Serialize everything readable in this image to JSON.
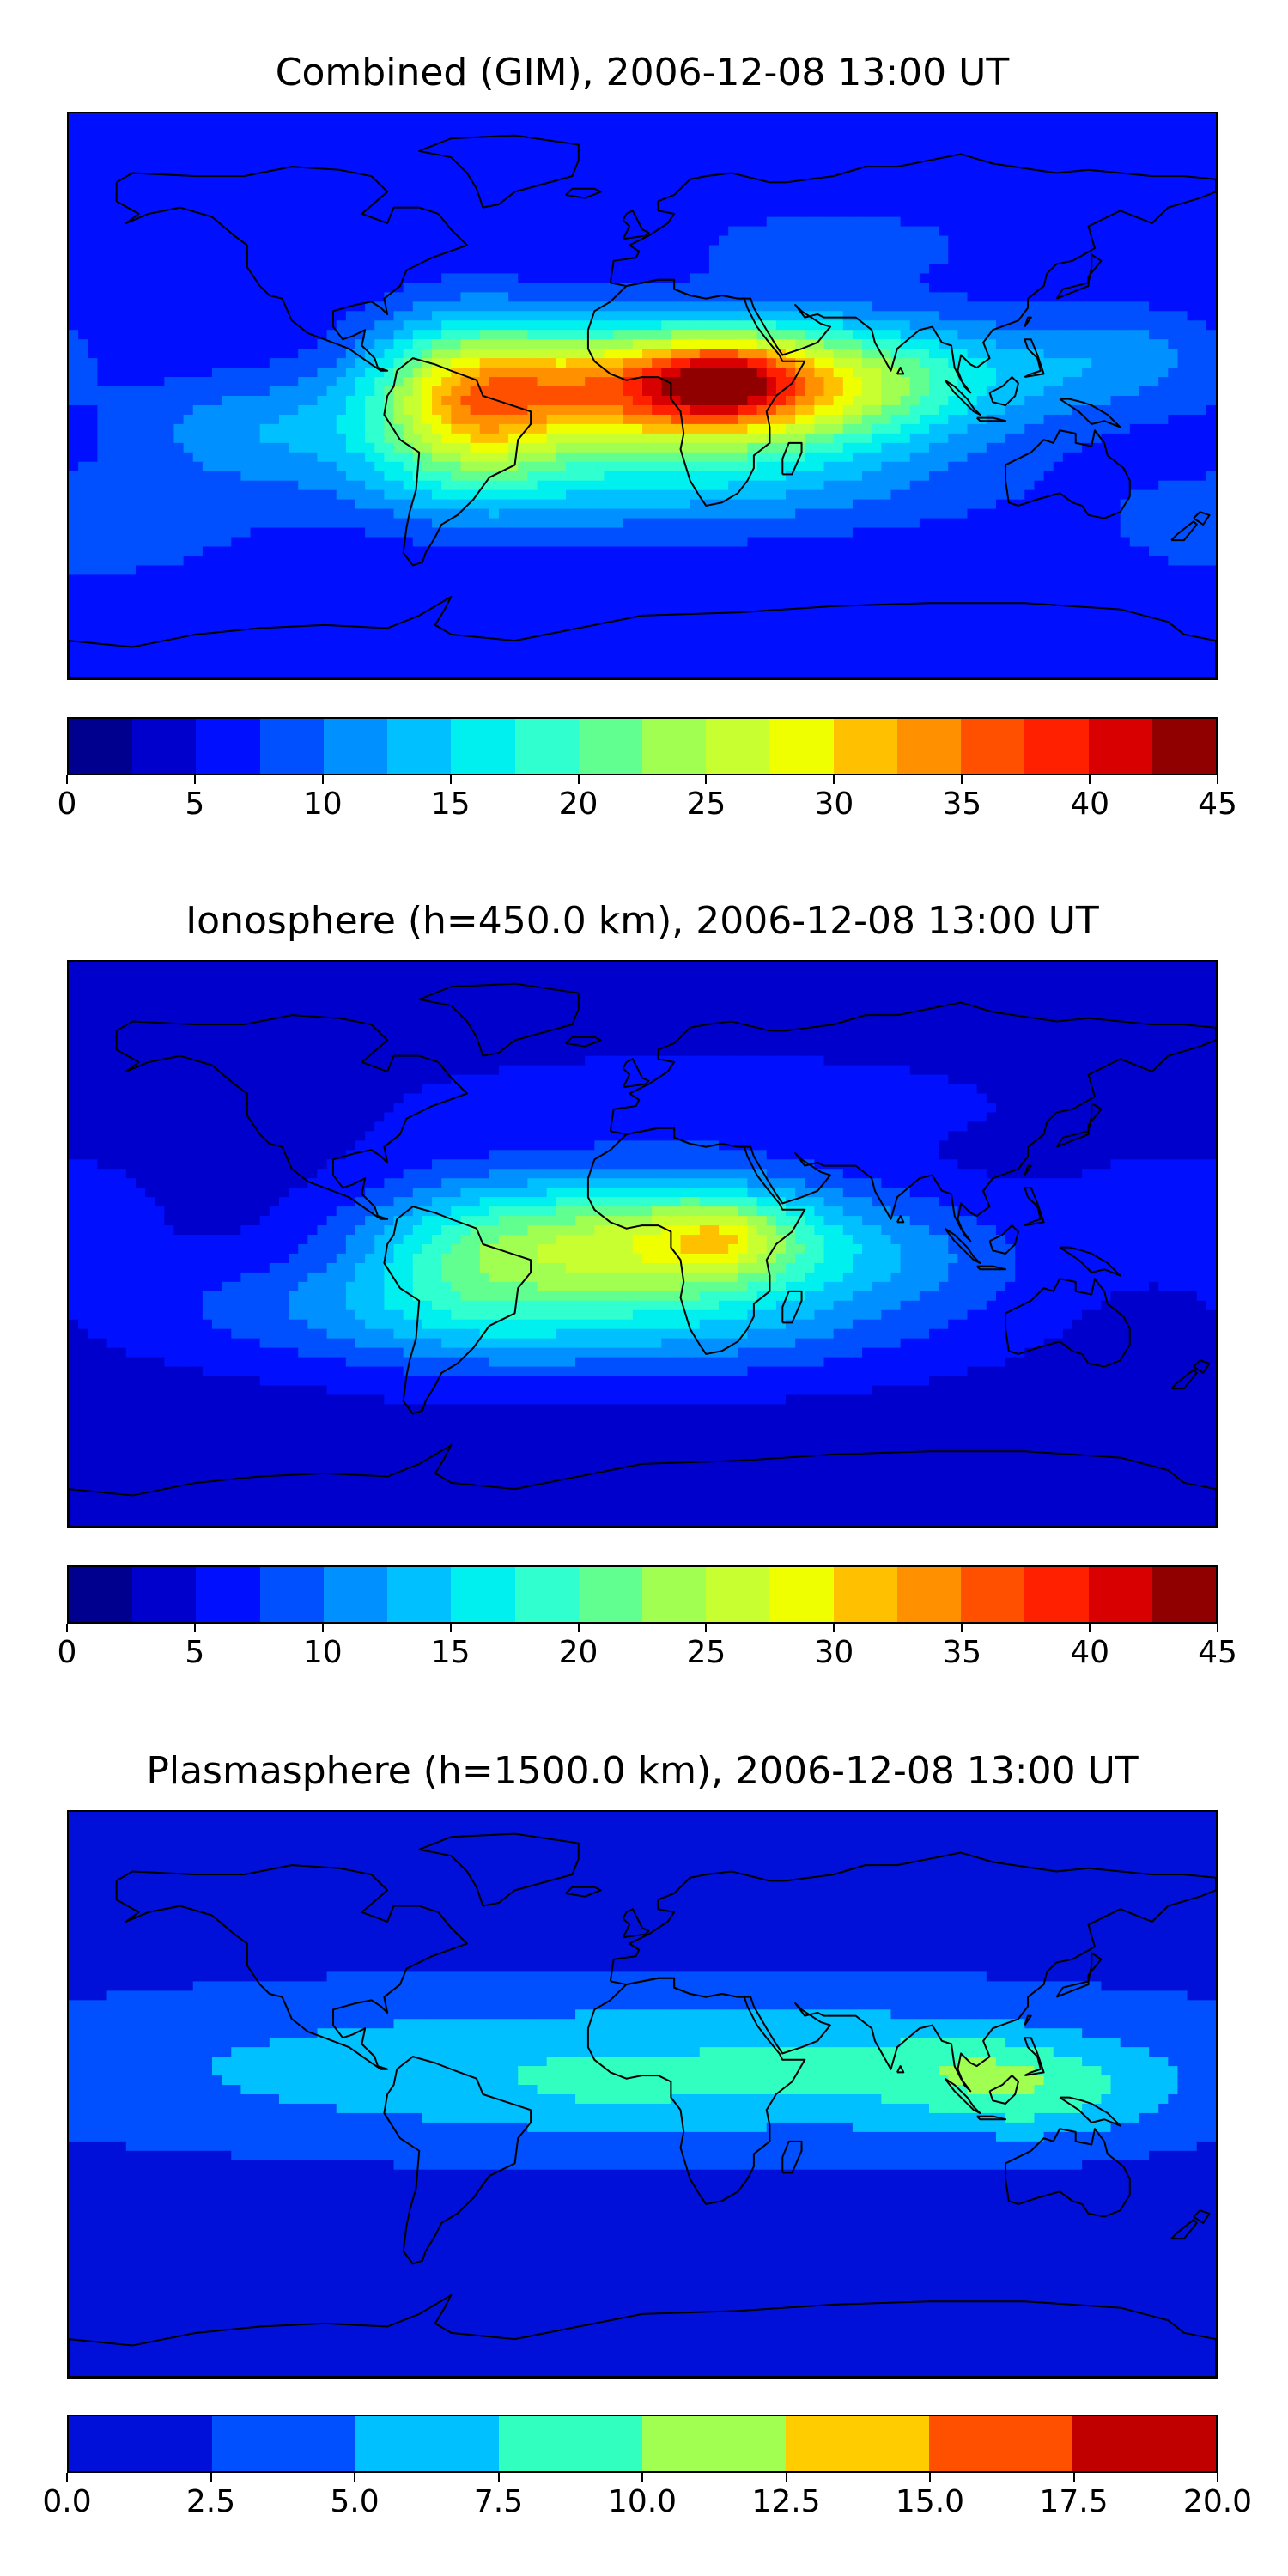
{
  "panels": [
    {
      "title": "Combined (GIM), 2006-12-08 13:00 UT",
      "colorbar": {
        "colors": [
          "#00008f",
          "#0000cd",
          "#0010ff",
          "#0050ff",
          "#0090ff",
          "#00c0ff",
          "#00f0f0",
          "#30ffd0",
          "#60ff90",
          "#a0ff50",
          "#c8ff30",
          "#f0ff00",
          "#ffc000",
          "#ff9000",
          "#ff5000",
          "#ff2000",
          "#d80000",
          "#900000"
        ],
        "tick_labels": [
          "0",
          "5",
          "10",
          "15",
          "20",
          "25",
          "30",
          "35",
          "40",
          "45"
        ],
        "range": [
          0,
          45
        ]
      },
      "field": {
        "background": 5.5,
        "blobs": [
          {
            "lon": 10,
            "lat": 2,
            "sx": 42,
            "sy": 14,
            "a": 30
          },
          {
            "lon": 25,
            "lat": 5,
            "sx": 14,
            "sy": 8,
            "a": 9
          },
          {
            "lon": -55,
            "lat": -2,
            "sx": 22,
            "sy": 18,
            "a": 20
          },
          {
            "lon": 70,
            "lat": 5,
            "sx": 40,
            "sy": 14,
            "a": 11
          },
          {
            "lon": 0,
            "lat": -28,
            "sx": 70,
            "sy": 12,
            "a": 7
          },
          {
            "lon": -120,
            "lat": -10,
            "sx": 30,
            "sy": 12,
            "a": 6
          },
          {
            "lon": 150,
            "lat": 12,
            "sx": 25,
            "sy": 12,
            "a": 5
          },
          {
            "lon": 60,
            "lat": 48,
            "sx": 30,
            "sy": 8,
            "a": 4
          },
          {
            "lon": -170,
            "lat": -42,
            "sx": 30,
            "sy": 12,
            "a": 4
          }
        ]
      }
    },
    {
      "title": "Ionosphere  (h=450.0 km), 2006-12-08 13:00 UT",
      "colorbar": {
        "colors": [
          "#00008f",
          "#0000cd",
          "#0010ff",
          "#0050ff",
          "#0090ff",
          "#00c0ff",
          "#00f0f0",
          "#30ffd0",
          "#60ff90",
          "#a0ff50",
          "#c8ff30",
          "#f0ff00",
          "#ffc000",
          "#ff9000",
          "#ff5000",
          "#ff2000",
          "#d80000",
          "#900000"
        ],
        "tick_labels": [
          "0",
          "5",
          "10",
          "15",
          "20",
          "25",
          "30",
          "35",
          "40",
          "45"
        ],
        "range": [
          0,
          45
        ]
      },
      "field": {
        "background": 4.0,
        "blobs": [
          {
            "lon": 10,
            "lat": 0,
            "sx": 40,
            "sy": 15,
            "a": 22
          },
          {
            "lon": 25,
            "lat": 2,
            "sx": 12,
            "sy": 7,
            "a": 6
          },
          {
            "lon": -55,
            "lat": -5,
            "sx": 28,
            "sy": 18,
            "a": 11
          },
          {
            "lon": 0,
            "lat": -28,
            "sx": 60,
            "sy": 12,
            "a": 6
          },
          {
            "lon": 90,
            "lat": -5,
            "sx": 30,
            "sy": 14,
            "a": 4
          },
          {
            "lon": -110,
            "lat": -20,
            "sx": 40,
            "sy": 12,
            "a": 4
          },
          {
            "lon": 20,
            "lat": 45,
            "sx": 60,
            "sy": 10,
            "a": 3
          },
          {
            "lon": 170,
            "lat": 10,
            "sx": 25,
            "sy": 12,
            "a": 3
          }
        ]
      }
    },
    {
      "title": "Plasmasphere (h=1500.0 km), 2006-12-08 13:00 UT",
      "colorbar": {
        "colors": [
          "#0010d8",
          "#0050ff",
          "#00c0ff",
          "#30ffc0",
          "#a0ff50",
          "#ffcc00",
          "#ff5000",
          "#c00000"
        ],
        "tick_labels": [
          "0.0",
          "2.5",
          "5.0",
          "7.5",
          "10.0",
          "12.5",
          "15.0",
          "17.5",
          "20.0"
        ],
        "range": [
          0,
          20
        ]
      },
      "field": {
        "background": 1.5,
        "blobs": [
          {
            "lon": 0,
            "lat": 8,
            "sx": 130,
            "sy": 17,
            "a": 6.0
          },
          {
            "lon": 125,
            "lat": 0,
            "sx": 25,
            "sy": 10,
            "a": 4.2
          },
          {
            "lon": 105,
            "lat": 10,
            "sx": 15,
            "sy": 6,
            "a": 1.5
          },
          {
            "lon": -10,
            "lat": -2,
            "sx": 25,
            "sy": 8,
            "a": 1.0
          },
          {
            "lon": 80,
            "lat": 8,
            "sx": 35,
            "sy": 12,
            "a": 1.5
          }
        ]
      }
    }
  ]
}
